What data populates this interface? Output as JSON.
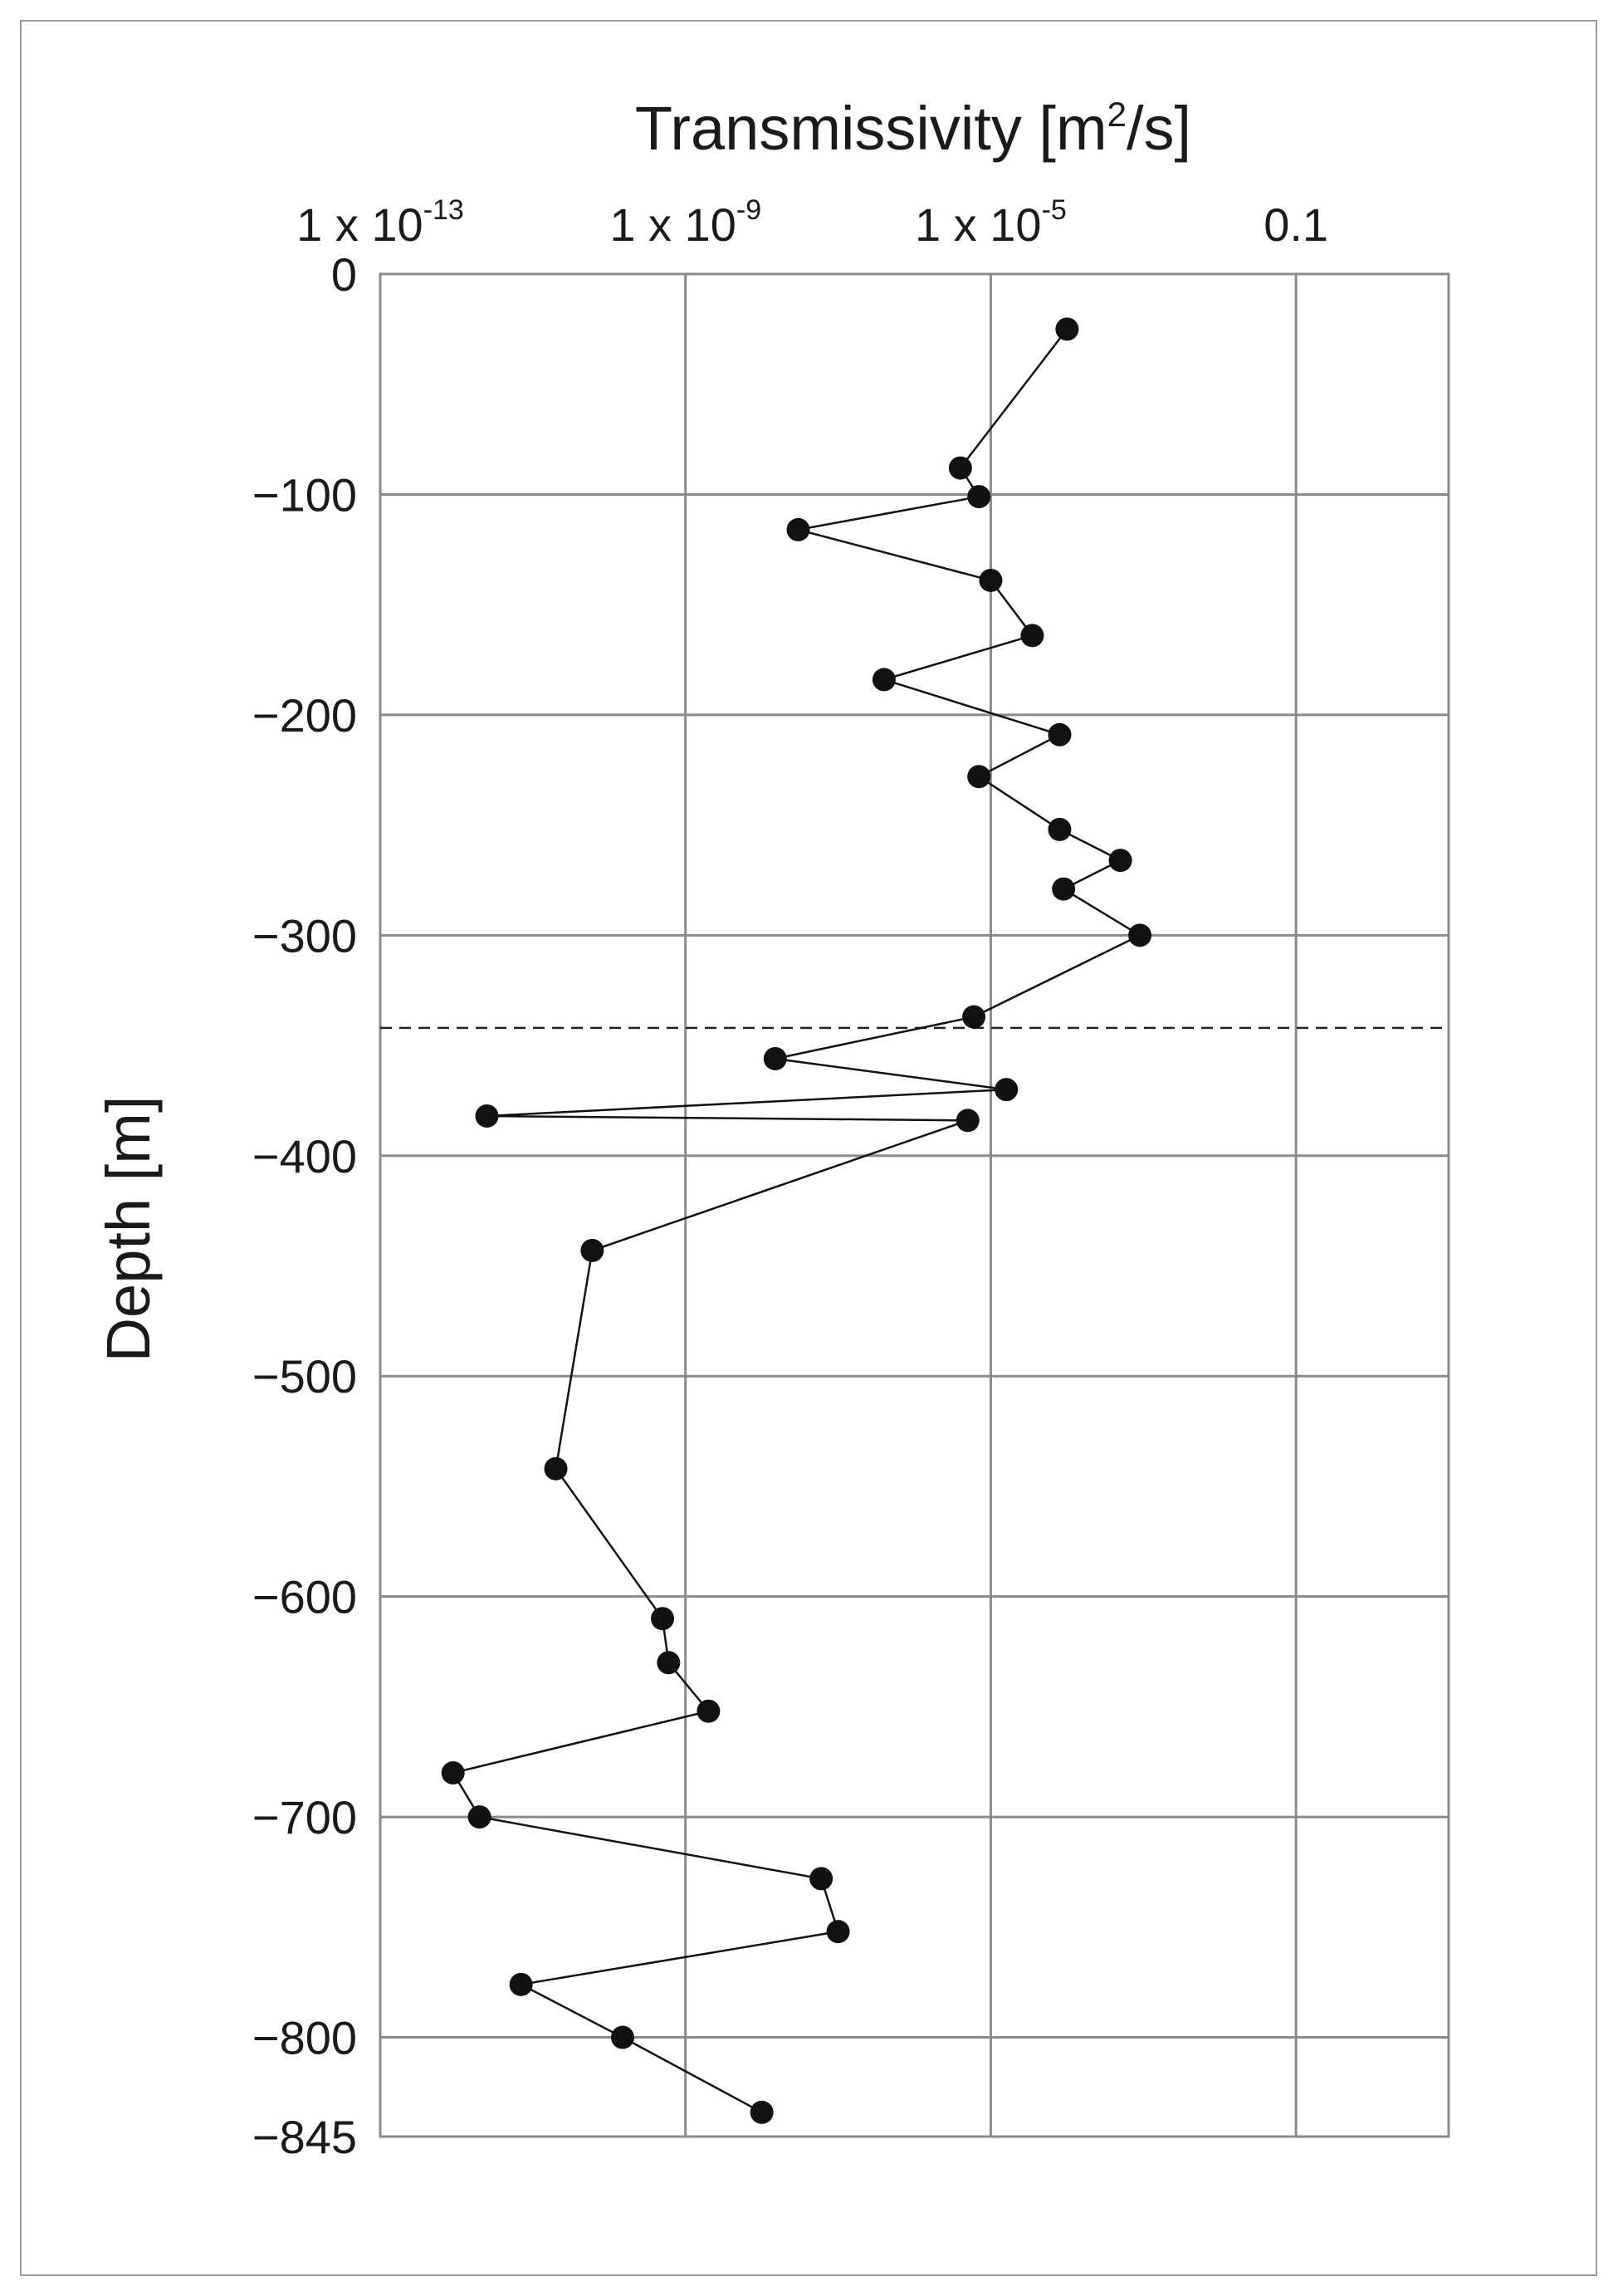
{
  "chart_data": {
    "type": "line",
    "title": "",
    "xlabel": {
      "base": "Transmissivity [m",
      "sup": "2",
      "rest": "/s]"
    },
    "ylabel": "Depth [m]",
    "xscale": "log",
    "xlim": [
      1e-13,
      10
    ],
    "ylim": [
      -845,
      0
    ],
    "x_ticks": [
      {
        "value": 1e-13,
        "base": "1 x 10",
        "exp": "-13"
      },
      {
        "value": 1e-09,
        "base": "1 x 10",
        "exp": "-9"
      },
      {
        "value": 1e-05,
        "base": "1 x 10",
        "exp": "-5"
      },
      {
        "value": 0.1,
        "base": "0.1",
        "exp": ""
      }
    ],
    "y_ticks": [
      {
        "value": 0,
        "label": "0"
      },
      {
        "value": -100,
        "label": "−100"
      },
      {
        "value": -200,
        "label": "−200"
      },
      {
        "value": -300,
        "label": "−300"
      },
      {
        "value": -400,
        "label": "−400"
      },
      {
        "value": -500,
        "label": "−500"
      },
      {
        "value": -600,
        "label": "−600"
      },
      {
        "value": -700,
        "label": "−700"
      },
      {
        "value": -800,
        "label": "−800"
      },
      {
        "value": -845,
        "label": "−845"
      }
    ],
    "grid": true,
    "reference_line": {
      "depth": -342,
      "style": "dashed"
    },
    "series": [
      {
        "points": [
          {
            "x": 0.0001,
            "y": -25
          },
          {
            "x": 4e-06,
            "y": -88
          },
          {
            "x": 7e-06,
            "y": -101
          },
          {
            "x": 3e-08,
            "y": -116
          },
          {
            "x": 1e-05,
            "y": -139
          },
          {
            "x": 3.5e-05,
            "y": -164
          },
          {
            "x": 4e-07,
            "y": -184
          },
          {
            "x": 8e-05,
            "y": -209
          },
          {
            "x": 7e-06,
            "y": -228
          },
          {
            "x": 8e-05,
            "y": -252
          },
          {
            "x": 0.0005,
            "y": -266
          },
          {
            "x": 9e-05,
            "y": -279
          },
          {
            "x": 0.0009,
            "y": -300
          },
          {
            "x": 6e-06,
            "y": -337
          },
          {
            "x": 1.5e-08,
            "y": -356
          },
          {
            "x": 1.6e-05,
            "y": -370
          },
          {
            "x": 2.5e-12,
            "y": -382
          },
          {
            "x": 5e-06,
            "y": -384
          },
          {
            "x": 6e-11,
            "y": -443
          },
          {
            "x": 2e-11,
            "y": -542
          },
          {
            "x": 5e-10,
            "y": -610
          },
          {
            "x": 6e-10,
            "y": -630
          },
          {
            "x": 2e-09,
            "y": -652
          },
          {
            "x": 9e-13,
            "y": -680
          },
          {
            "x": 2e-12,
            "y": -700
          },
          {
            "x": 6e-08,
            "y": -728
          },
          {
            "x": 1e-07,
            "y": -752
          },
          {
            "x": 7e-12,
            "y": -776
          },
          {
            "x": 1.5e-10,
            "y": -800
          },
          {
            "x": 1e-08,
            "y": -834
          }
        ]
      }
    ]
  }
}
